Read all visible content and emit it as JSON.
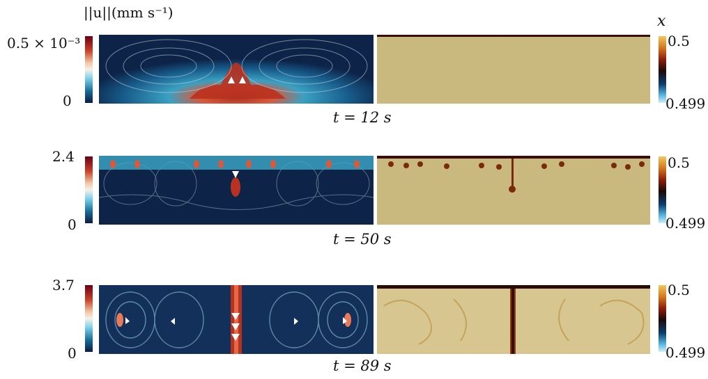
{
  "header": {
    "velocity_label": "||u||(mm s⁻¹)",
    "composition_label": "x"
  },
  "rows": [
    {
      "time_caption": "t = 12 s",
      "velocity_max": "0.5 × 10⁻³",
      "velocity_min": "0",
      "x_max": "0.5",
      "x_min": "0.499"
    },
    {
      "time_caption": "t = 50 s",
      "velocity_max": "2.4",
      "velocity_min": "0",
      "x_max": "0.5",
      "x_min": "0.499"
    },
    {
      "time_caption": "t = 89 s",
      "velocity_max": "3.7",
      "velocity_min": "0",
      "x_max": "0.5",
      "x_min": "0.499"
    }
  ],
  "colors": {
    "velocity_background": "#0d2448",
    "velocity_peak": "#b8321f",
    "composition_background": "#c9b97e",
    "composition_plume": "#7a2a0a"
  }
}
